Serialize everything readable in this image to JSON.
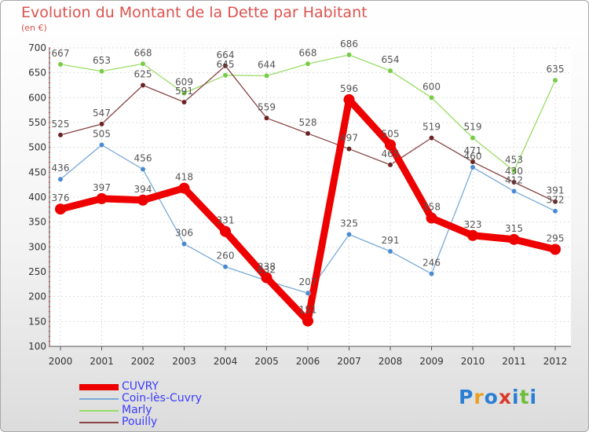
{
  "header": {
    "title": "Evolution du Montant de la Dette par Habitant",
    "subtitle": "(en €)"
  },
  "logo": {
    "text": "Proxiti",
    "letters": [
      "P",
      "r",
      "o",
      "x",
      "i",
      "t",
      "i"
    ],
    "colors": [
      "#2a7fd4",
      "#e8a020",
      "#2a7fd4",
      "#d93a2a",
      "#2a7fd4",
      "#6cbf3a",
      "#2a7fd4"
    ]
  },
  "chart_data": {
    "type": "line",
    "title": "Evolution du Montant de la Dette par Habitant",
    "subtitle": "(en €)",
    "x": [
      "2000",
      "2001",
      "2002",
      "2003",
      "2004",
      "2005",
      "2006",
      "2007",
      "2008",
      "2009",
      "2010",
      "2011",
      "2012"
    ],
    "ylim": [
      100,
      700
    ],
    "yticks": [
      100,
      150,
      200,
      250,
      300,
      350,
      400,
      450,
      500,
      550,
      600,
      650,
      700
    ],
    "grid": true,
    "legend_position": "bottom-left",
    "series": [
      {
        "name": "Marly",
        "color": "#99dd66",
        "marker": "#77cc44",
        "values": [
          667,
          653,
          668,
          609,
          645,
          644,
          668,
          686,
          654,
          600,
          519,
          453,
          635
        ],
        "labels": [
          "667",
          "653",
          "668",
          "609",
          "645",
          "644",
          "668",
          "686",
          "654",
          "600",
          "519",
          "453",
          "635"
        ]
      },
      {
        "name": "Pouilly",
        "color": "#884444",
        "marker": "#6a2222",
        "values": [
          525,
          547,
          625,
          591,
          664,
          559,
          528,
          497,
          465,
          519,
          471,
          430,
          391
        ],
        "labels": [
          "525",
          "547",
          "625",
          "591",
          "664",
          "559",
          "528",
          "497",
          "465",
          "519",
          "471",
          "430",
          "391"
        ]
      },
      {
        "name": "Coin-lès-Cuvry",
        "color": "#7aaad8",
        "marker": "#4a8ad0",
        "values": [
          436,
          505,
          456,
          306,
          260,
          232,
          207,
          325,
          291,
          246,
          460,
          412,
          372
        ],
        "labels": [
          "436",
          "505",
          "456",
          "306",
          "260",
          "232",
          "207",
          "325",
          "291",
          "246",
          "460",
          "412",
          "372"
        ]
      },
      {
        "name": "CUVRY",
        "color": "#ee0000",
        "marker": "#ee0000",
        "values": [
          376,
          397,
          394,
          418,
          331,
          238,
          151,
          596,
          505,
          358,
          323,
          315,
          295
        ],
        "labels": [
          "376",
          "397",
          "394",
          "418",
          "331",
          "238",
          "151",
          "596",
          "505",
          "358",
          "323",
          "315",
          "295"
        ]
      }
    ]
  },
  "legend": [
    {
      "label": "CUVRY",
      "color": "#ee0000"
    },
    {
      "label": "Coin-lès-Cuvry",
      "color": "#7aaad8"
    },
    {
      "label": "Marly",
      "color": "#99dd66"
    },
    {
      "label": "Pouilly",
      "color": "#884444"
    }
  ]
}
